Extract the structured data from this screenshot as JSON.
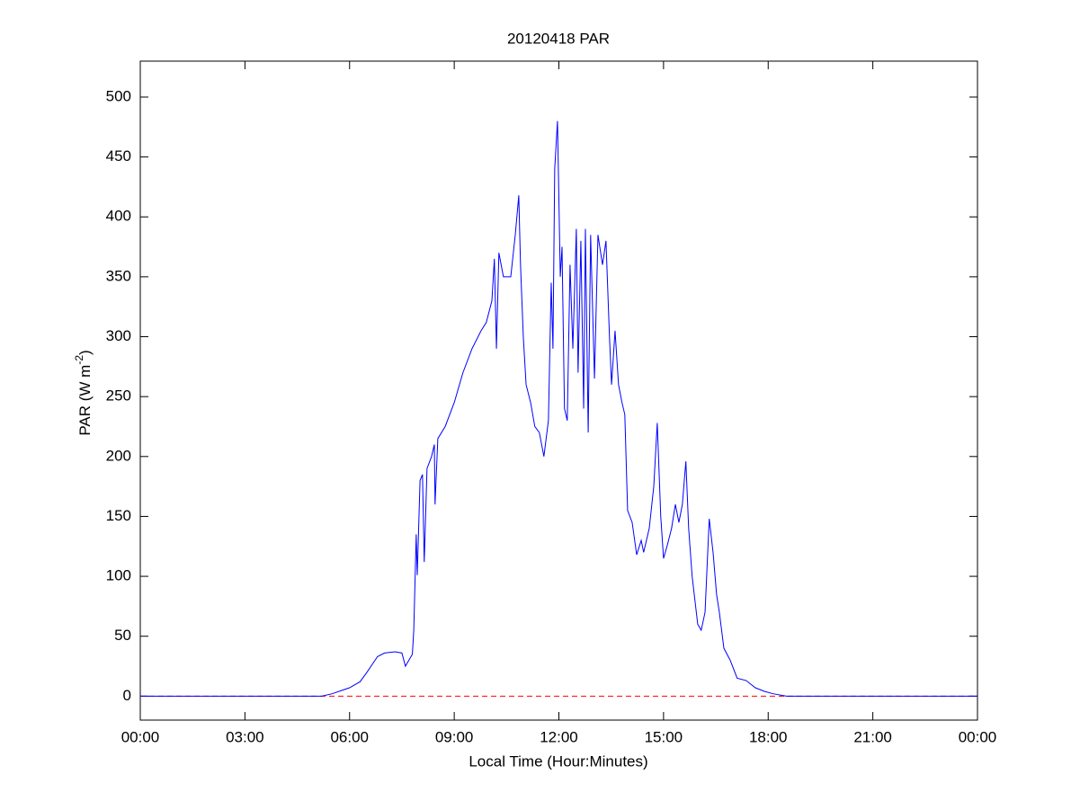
{
  "chart_data": {
    "type": "line",
    "title": "20120418 PAR",
    "x_label": "Local Time (Hour:Minutes)",
    "y_label": {
      "base": "PAR (W m",
      "sup": "-2",
      "end": ")"
    },
    "color": "#0000ff",
    "xlim": [
      0,
      24
    ],
    "xticks": [
      {
        "value": 0,
        "label": "00:00"
      },
      {
        "value": 3,
        "label": "03:00"
      },
      {
        "value": 6,
        "label": "06:00"
      },
      {
        "value": 9,
        "label": "09:00"
      },
      {
        "value": 12,
        "label": "12:00"
      },
      {
        "value": 15,
        "label": "15:00"
      },
      {
        "value": 18,
        "label": "18:00"
      },
      {
        "value": 21,
        "label": "21:00"
      },
      {
        "value": 24,
        "label": "00:00"
      }
    ],
    "ylim": [
      -20,
      530
    ],
    "yticks": [
      0,
      50,
      100,
      150,
      200,
      250,
      300,
      350,
      400,
      450,
      500
    ],
    "reference_line": {
      "value": 0,
      "color": "#ff0000",
      "dashed": true
    },
    "x": [
      0,
      5.2,
      5.5,
      6.0,
      6.3,
      6.5,
      6.8,
      7.0,
      7.3,
      7.5,
      7.6,
      7.8,
      7.84,
      7.91,
      7.94,
      8.02,
      8.09,
      8.14,
      8.22,
      8.35,
      8.43,
      8.45,
      8.53,
      8.74,
      9.0,
      9.25,
      9.51,
      9.77,
      9.92,
      10.08,
      10.15,
      10.21,
      10.28,
      10.41,
      10.62,
      10.75,
      10.85,
      10.9,
      10.98,
      11.06,
      11.19,
      11.31,
      11.44,
      11.57,
      11.7,
      11.78,
      11.83,
      11.88,
      11.96,
      12.04,
      12.09,
      12.16,
      12.24,
      12.32,
      12.4,
      12.5,
      12.55,
      12.63,
      12.71,
      12.76,
      12.84,
      12.91,
      13.02,
      13.12,
      13.25,
      13.35,
      13.45,
      13.51,
      13.61,
      13.71,
      13.81,
      13.89,
      13.97,
      14.1,
      14.23,
      14.36,
      14.43,
      14.59,
      14.72,
      14.82,
      14.92,
      15.0,
      15.1,
      15.23,
      15.34,
      15.44,
      15.54,
      15.64,
      15.72,
      15.82,
      15.98,
      16.08,
      16.19,
      16.31,
      16.42,
      16.52,
      16.6,
      16.73,
      16.91,
      17.11,
      17.37,
      17.63,
      17.89,
      18.14,
      18.53,
      24
    ],
    "values": [
      0,
      0,
      2,
      7,
      12,
      20,
      33,
      36,
      37,
      36,
      25,
      35,
      55,
      135,
      101,
      180,
      185,
      112,
      190,
      200,
      210,
      160,
      215,
      225,
      245,
      270,
      290,
      305,
      312,
      330,
      365,
      290,
      370,
      350,
      350,
      385,
      418,
      360,
      300,
      260,
      245,
      225,
      220,
      200,
      230,
      345,
      290,
      440,
      480,
      350,
      375,
      240,
      230,
      360,
      290,
      390,
      270,
      380,
      240,
      390,
      220,
      385,
      265,
      385,
      360,
      380,
      300,
      260,
      305,
      260,
      245,
      235,
      155,
      145,
      118,
      130,
      120,
      140,
      175,
      228,
      150,
      115,
      125,
      140,
      160,
      145,
      160,
      196,
      140,
      100,
      60,
      55,
      70,
      148,
      120,
      85,
      70,
      40,
      30,
      15,
      13,
      7,
      4,
      2,
      0,
      0
    ]
  }
}
